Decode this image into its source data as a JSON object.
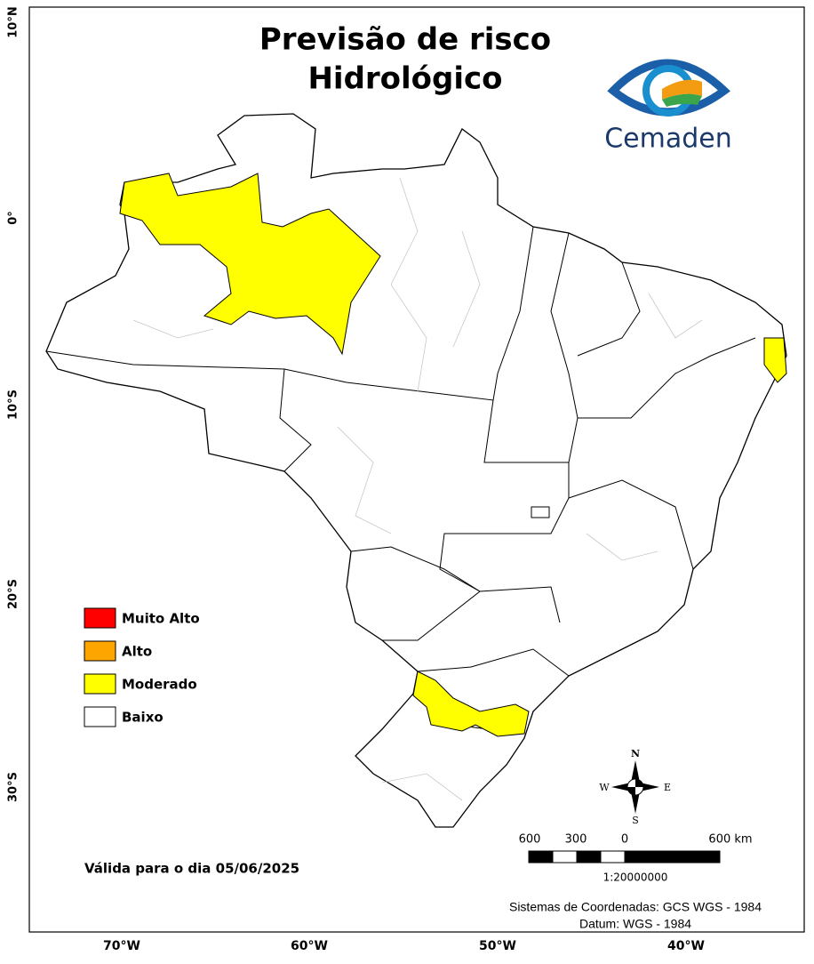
{
  "header": {
    "title_lines": [
      "Previsão de risco",
      "Hidrológico"
    ],
    "logo_text": "Cemaden"
  },
  "legend": [
    {
      "label": "Muito Alto",
      "color": "#ff0000"
    },
    {
      "label": "Alto",
      "color": "#ffa500"
    },
    {
      "label": "Moderado",
      "color": "#ffff00"
    },
    {
      "label": "Baixo",
      "color": "#ffffff"
    }
  ],
  "validity": "Válida para o dia 05/06/2025",
  "compass": {
    "n": "N",
    "s": "S",
    "w": "W",
    "e": "E"
  },
  "scale_bar": {
    "labels": [
      "600",
      "300",
      "0",
      "600 km"
    ],
    "ratio": "1:20000000"
  },
  "credits": [
    "Sistemas de Coordenadas: GCS WGS - 1984",
    "Datum: WGS - 1984"
  ],
  "lat_labels": [
    "10°N",
    "0°",
    "10°S",
    "20°S",
    "30°S"
  ],
  "lon_labels": [
    "70°W",
    "60°W",
    "50°W",
    "40°W"
  ]
}
